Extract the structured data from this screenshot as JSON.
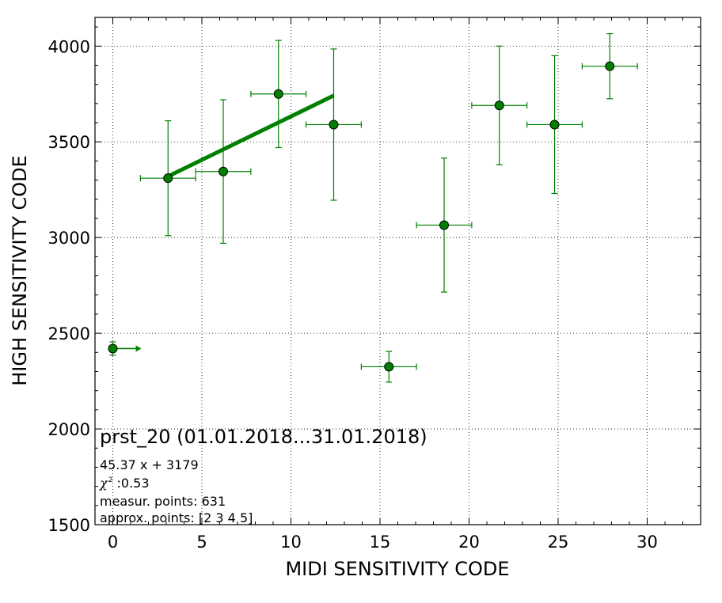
{
  "chart_data": {
    "type": "scatter",
    "xlabel": "MIDI SENSITIVITY CODE",
    "ylabel": "HIGH SENSITIVITY CODE",
    "xlim": [
      -1,
      33
    ],
    "ylim": [
      1500,
      4150
    ],
    "x_ticks": [
      "0",
      "5",
      "10",
      "15",
      "20",
      "25",
      "30"
    ],
    "y_ticks": [
      "1500",
      "2000",
      "2500",
      "3000",
      "3500",
      "4000"
    ],
    "grid": true,
    "color": "#008000",
    "points": [
      {
        "x": 0,
        "y": 2420,
        "xerr": 0,
        "yerr": 35,
        "xlower_limit_arrow": true
      },
      {
        "x": 3.1,
        "y": 3310,
        "xerr": 1.55,
        "yerr": 300
      },
      {
        "x": 6.2,
        "y": 3345,
        "xerr": 1.55,
        "yerr": 375
      },
      {
        "x": 9.3,
        "y": 3750,
        "xerr": 1.55,
        "yerr": 280
      },
      {
        "x": 12.4,
        "y": 3590,
        "xerr": 1.55,
        "yerr": 395
      },
      {
        "x": 15.5,
        "y": 2325,
        "xerr": 1.55,
        "yerr": 80
      },
      {
        "x": 18.6,
        "y": 3065,
        "xerr": 1.55,
        "yerr": 350
      },
      {
        "x": 21.7,
        "y": 3690,
        "xerr": 1.55,
        "yerr": 310
      },
      {
        "x": 24.8,
        "y": 3590,
        "xerr": 1.55,
        "yerr": 360
      },
      {
        "x": 27.9,
        "y": 3895,
        "xerr": 1.55,
        "yerr": 170
      }
    ],
    "fit": {
      "slope": 45.37,
      "intercept": 3179,
      "x_range": [
        3.1,
        12.4
      ]
    },
    "annotations": {
      "title": "prst_20 (01.01.2018...31.01.2018)",
      "equation": "45.37 x + 3179",
      "chi_symbol": "χ",
      "chi_sup": "2",
      "chi_value": " :0.53",
      "measur_points": "measur. points: 631",
      "approx_points": "approx. points: [2 3 4 5]"
    }
  }
}
